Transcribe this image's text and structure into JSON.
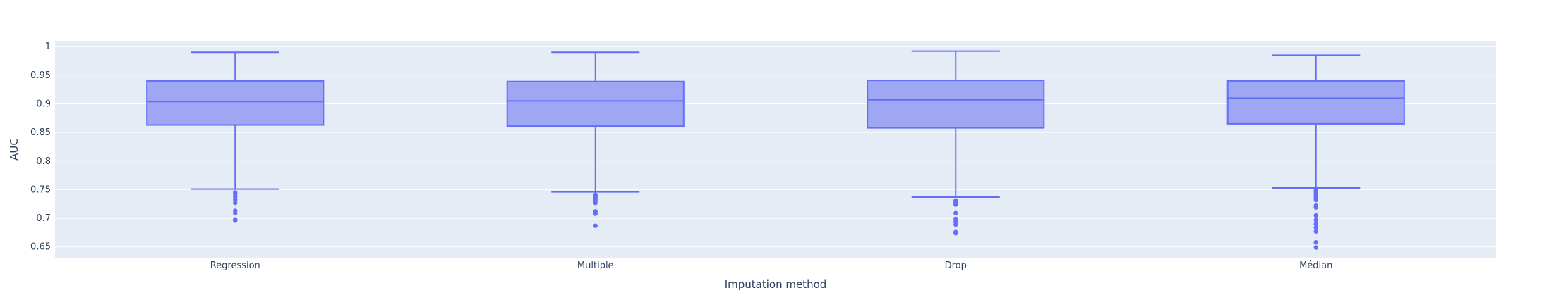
{
  "chart_data": {
    "type": "box",
    "xlabel": "Imputation method",
    "ylabel": "AUC",
    "ylim": [
      0.63,
      1.01
    ],
    "yticks": [
      "0.65",
      "0.7",
      "0.75",
      "0.8",
      "0.85",
      "0.9",
      "0.95",
      "1"
    ],
    "grid": true,
    "colors": {
      "plot_bg": "#e5ecf6",
      "box_fill": "#9fa6f4",
      "box_line": "#636efa",
      "grid": "#ffffff",
      "text": "#2a3f5f"
    },
    "categories": [
      "Regression",
      "Multiple",
      "Drop",
      "Médian"
    ],
    "boxes": [
      {
        "category": "Regression",
        "lower_whisker": 0.751,
        "q1": 0.863,
        "median": 0.904,
        "q3": 0.94,
        "upper_whisker": 0.99,
        "outliers": [
          0.745,
          0.742,
          0.738,
          0.733,
          0.727,
          0.713,
          0.709,
          0.698,
          0.696
        ]
      },
      {
        "category": "Multiple",
        "lower_whisker": 0.746,
        "q1": 0.861,
        "median": 0.905,
        "q3": 0.939,
        "upper_whisker": 0.99,
        "outliers": [
          0.741,
          0.737,
          0.734,
          0.731,
          0.727,
          0.712,
          0.708,
          0.687
        ]
      },
      {
        "category": "Drop",
        "lower_whisker": 0.737,
        "q1": 0.858,
        "median": 0.907,
        "q3": 0.941,
        "upper_whisker": 0.992,
        "outliers": [
          0.731,
          0.728,
          0.724,
          0.709,
          0.699,
          0.694,
          0.689,
          0.676,
          0.674
        ]
      },
      {
        "category": "Médian",
        "lower_whisker": 0.753,
        "q1": 0.865,
        "median": 0.91,
        "q3": 0.94,
        "upper_whisker": 0.985,
        "outliers": [
          0.749,
          0.746,
          0.743,
          0.741,
          0.738,
          0.735,
          0.732,
          0.722,
          0.719,
          0.705,
          0.697,
          0.69,
          0.684,
          0.677,
          0.658,
          0.649
        ]
      }
    ]
  }
}
